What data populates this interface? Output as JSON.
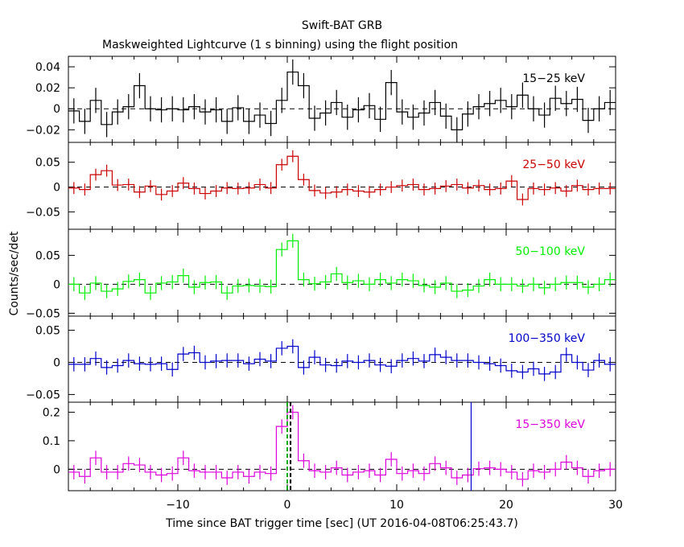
{
  "title": "Swift-BAT GRB",
  "subtitle": "Maskweighted Lightcurve (1 s binning) using the flight position",
  "xlabel": "Time since BAT trigger time [sec] (UT 2016-04-08T06:25:43.7)",
  "ylabel": "Counts/sec/det",
  "x_ticks": [
    "−10",
    "0",
    "10",
    "20",
    "30"
  ],
  "chart_data": [
    {
      "type": "line",
      "name": "15-25 keV",
      "label": "15−25 keV",
      "color": "#000000",
      "xlim": [
        -20,
        30
      ],
      "ylim": [
        -0.032,
        0.05
      ],
      "yticks": [
        -0.02,
        0,
        0.02,
        0.04
      ],
      "yticklabels": [
        "−0.02",
        "0",
        "0.02",
        "0.04"
      ],
      "x": [
        -19.5,
        -18.5,
        -17.5,
        -16.5,
        -15.5,
        -14.5,
        -13.5,
        -12.5,
        -11.5,
        -10.5,
        -9.5,
        -8.5,
        -7.5,
        -6.5,
        -5.5,
        -4.5,
        -3.5,
        -2.5,
        -1.5,
        -0.5,
        0.5,
        1.5,
        2.5,
        3.5,
        4.5,
        5.5,
        6.5,
        7.5,
        8.5,
        9.5,
        10.5,
        11.5,
        12.5,
        13.5,
        14.5,
        15.5,
        16.5,
        17.5,
        18.5,
        19.5,
        20.5,
        21.5,
        22.5,
        23.5,
        24.5,
        25.5,
        26.5,
        27.5,
        28.5,
        29.5
      ],
      "y": [
        -0.002,
        -0.012,
        0.008,
        -0.015,
        -0.003,
        0.002,
        0.022,
        0.0,
        -0.001,
        0.0,
        -0.001,
        0.002,
        -0.003,
        -0.001,
        -0.012,
        0.001,
        -0.012,
        -0.006,
        -0.014,
        0.008,
        0.035,
        0.022,
        -0.009,
        -0.004,
        0.006,
        -0.008,
        -0.001,
        0.003,
        -0.01,
        0.025,
        -0.003,
        -0.008,
        -0.004,
        0.006,
        -0.007,
        -0.02,
        -0.005,
        0.002,
        0.005,
        0.008,
        0.002,
        0.013,
        0.0,
        -0.006,
        0.01,
        0.005,
        0.009,
        -0.011,
        0.0,
        0.006
      ],
      "err": 0.012
    },
    {
      "type": "line",
      "name": "25-50 keV",
      "label": "25−50 keV",
      "color": "#cc0000",
      "xlim": [
        -20,
        30
      ],
      "ylim": [
        -0.085,
        0.09
      ],
      "yticks": [
        -0.05,
        0,
        0.05
      ],
      "yticklabels": [
        "−0.05",
        "0",
        "0.05"
      ],
      "x": [
        -19.5,
        -18.5,
        -17.5,
        -16.5,
        -15.5,
        -14.5,
        -13.5,
        -12.5,
        -11.5,
        -10.5,
        -9.5,
        -8.5,
        -7.5,
        -6.5,
        -5.5,
        -4.5,
        -3.5,
        -2.5,
        -1.5,
        -0.5,
        0.5,
        1.5,
        2.5,
        3.5,
        4.5,
        5.5,
        6.5,
        7.5,
        8.5,
        9.5,
        10.5,
        11.5,
        12.5,
        13.5,
        14.5,
        15.5,
        16.5,
        17.5,
        18.5,
        19.5,
        20.5,
        21.5,
        22.5,
        23.5,
        24.5,
        25.5,
        26.5,
        27.5,
        28.5,
        29.5
      ],
      "y": [
        -0.002,
        -0.005,
        0.025,
        0.033,
        0.004,
        0.005,
        -0.01,
        0.002,
        -0.015,
        -0.008,
        0.008,
        -0.003,
        -0.013,
        -0.008,
        -0.002,
        -0.003,
        -0.002,
        0.005,
        -0.002,
        0.045,
        0.062,
        0.015,
        -0.007,
        -0.012,
        -0.01,
        -0.005,
        -0.008,
        -0.01,
        -0.005,
        0.0,
        0.003,
        0.005,
        -0.005,
        -0.003,
        0.002,
        0.005,
        -0.002,
        0.003,
        -0.005,
        -0.003,
        0.012,
        -0.025,
        -0.003,
        -0.005,
        -0.002,
        -0.008,
        0.003,
        -0.005,
        -0.003,
        -0.003
      ],
      "err": 0.012
    },
    {
      "type": "line",
      "name": "50-100 keV",
      "label": "50−100 keV",
      "color": "#00ee00",
      "xlim": [
        -20,
        30
      ],
      "ylim": [
        -0.055,
        0.095
      ],
      "yticks": [
        -0.05,
        0,
        0.05
      ],
      "yticklabels": [
        "−0.05",
        "0",
        "0.05"
      ],
      "x": [
        -19.5,
        -18.5,
        -17.5,
        -16.5,
        -15.5,
        -14.5,
        -13.5,
        -12.5,
        -11.5,
        -10.5,
        -9.5,
        -8.5,
        -7.5,
        -6.5,
        -5.5,
        -4.5,
        -3.5,
        -2.5,
        -1.5,
        -0.5,
        0.5,
        1.5,
        2.5,
        3.5,
        4.5,
        5.5,
        6.5,
        7.5,
        8.5,
        9.5,
        10.5,
        11.5,
        12.5,
        13.5,
        14.5,
        15.5,
        16.5,
        17.5,
        18.5,
        19.5,
        20.5,
        21.5,
        22.5,
        23.5,
        24.5,
        25.5,
        26.5,
        27.5,
        28.5,
        29.5
      ],
      "y": [
        0.0,
        -0.015,
        0.002,
        -0.012,
        -0.008,
        0.005,
        0.008,
        -0.015,
        0.002,
        0.004,
        0.015,
        -0.005,
        0.003,
        0.004,
        -0.015,
        -0.003,
        -0.002,
        -0.003,
        -0.004,
        0.06,
        0.075,
        0.008,
        0.001,
        0.004,
        0.018,
        0.003,
        0.006,
        0.0,
        0.008,
        0.002,
        0.008,
        0.006,
        -0.002,
        -0.005,
        0.002,
        -0.012,
        -0.01,
        -0.003,
        0.008,
        0.0,
        0.0,
        -0.003,
        0.0,
        -0.006,
        0.0,
        0.003,
        0.003,
        -0.005,
        0.0,
        0.008
      ],
      "err": 0.012
    },
    {
      "type": "line",
      "name": "100-350 keV",
      "label": "100−350 keV",
      "color": "#0000cc",
      "xlim": [
        -20,
        30
      ],
      "ylim": [
        -0.062,
        0.072
      ],
      "yticks": [
        -0.05,
        0,
        0.05
      ],
      "yticklabels": [
        "−0.05",
        "0",
        "0.05"
      ],
      "x": [
        -19.5,
        -18.5,
        -17.5,
        -16.5,
        -15.5,
        -14.5,
        -13.5,
        -12.5,
        -11.5,
        -10.5,
        -9.5,
        -8.5,
        -7.5,
        -6.5,
        -5.5,
        -4.5,
        -3.5,
        -2.5,
        -1.5,
        -0.5,
        0.5,
        1.5,
        2.5,
        3.5,
        4.5,
        5.5,
        6.5,
        7.5,
        8.5,
        9.5,
        10.5,
        11.5,
        12.5,
        13.5,
        14.5,
        15.5,
        16.5,
        17.5,
        18.5,
        19.5,
        20.5,
        21.5,
        22.5,
        23.5,
        24.5,
        25.5,
        26.5,
        27.5,
        28.5,
        29.5
      ],
      "y": [
        -0.003,
        -0.003,
        0.006,
        -0.008,
        -0.005,
        0.003,
        -0.002,
        -0.003,
        -0.002,
        -0.011,
        0.013,
        0.015,
        0.0,
        0.002,
        0.003,
        0.003,
        -0.002,
        0.005,
        0.002,
        0.022,
        0.025,
        -0.008,
        0.008,
        -0.004,
        -0.005,
        0.002,
        0.0,
        0.003,
        -0.004,
        -0.006,
        0.003,
        0.006,
        0.002,
        0.012,
        0.008,
        0.003,
        0.003,
        0.0,
        -0.002,
        -0.005,
        -0.013,
        -0.015,
        -0.01,
        -0.018,
        -0.015,
        0.012,
        0.0,
        -0.012,
        0.003,
        -0.003
      ],
      "err": 0.011
    },
    {
      "type": "line",
      "name": "15-350 keV",
      "label": "15−350 keV",
      "color": "#dd00dd",
      "xlim": [
        -20,
        30
      ],
      "ylim": [
        -0.075,
        0.235
      ],
      "yticks": [
        0,
        0.1,
        0.2
      ],
      "yticklabels": [
        "0",
        "0.1",
        "0.2"
      ],
      "x": [
        -19.5,
        -18.5,
        -17.5,
        -16.5,
        -15.5,
        -14.5,
        -13.5,
        -12.5,
        -11.5,
        -10.5,
        -9.5,
        -8.5,
        -7.5,
        -6.5,
        -5.5,
        -4.5,
        -3.5,
        -2.5,
        -1.5,
        -0.5,
        0.5,
        1.5,
        2.5,
        3.5,
        4.5,
        5.5,
        6.5,
        7.5,
        8.5,
        9.5,
        10.5,
        11.5,
        12.5,
        13.5,
        14.5,
        15.5,
        16.5,
        17.5,
        18.5,
        19.5,
        20.5,
        21.5,
        22.5,
        23.5,
        24.5,
        25.5,
        26.5,
        27.5,
        28.5,
        29.5
      ],
      "y": [
        -0.01,
        -0.025,
        0.04,
        -0.01,
        -0.01,
        0.02,
        0.015,
        -0.01,
        -0.02,
        -0.015,
        0.04,
        -0.005,
        -0.01,
        -0.01,
        -0.03,
        -0.01,
        -0.025,
        -0.01,
        -0.015,
        0.15,
        0.2,
        0.03,
        -0.005,
        -0.01,
        0.005,
        -0.02,
        -0.01,
        -0.005,
        -0.02,
        0.035,
        -0.015,
        -0.005,
        -0.015,
        0.02,
        0.005,
        -0.03,
        -0.02,
        0.002,
        0.005,
        0.0,
        -0.01,
        -0.035,
        -0.005,
        -0.01,
        0.0,
        0.025,
        0.005,
        -0.025,
        -0.005,
        0.0
      ],
      "err": 0.025,
      "markers": [
        {
          "x": 0.0,
          "color": "#00aa00",
          "style": "dashed"
        },
        {
          "x": 0.3,
          "color": "#000000",
          "style": "dashed"
        },
        {
          "x": 16.8,
          "color": "#0000cc",
          "style": "solid"
        }
      ]
    }
  ]
}
